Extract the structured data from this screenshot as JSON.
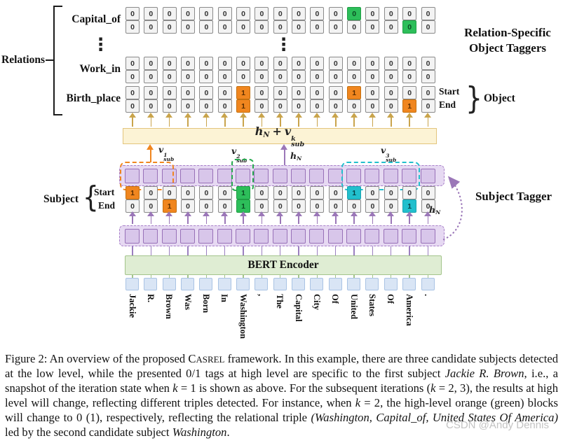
{
  "colors": {
    "orange": "#F0861F",
    "green": "#2DBE5A",
    "cyan": "#22BFCD",
    "gold": "#C9A44C",
    "purple_arrow": "#9B77B8",
    "yellow_bar_bg": "#FCF3D5",
    "yellow_bar_border": "#E3C57C",
    "purple_bg": "#E6D9F2",
    "purple_box": "#D8C6EA",
    "purple_border": "#9871B8",
    "bert_bg": "#DFEDD3",
    "bert_border": "#A3C48B",
    "token_bg": "#D9E5F5",
    "token_border": "#A9C3E4"
  },
  "diagram": {
    "relations_label": "Relations",
    "ellipsis": "⋮",
    "object_taggers_title_line1": "Relation-Specific",
    "object_taggers_title_line2": "Object Taggers",
    "relation_rows": [
      {
        "label": "Capital_of",
        "start": [
          "0",
          "0",
          "0",
          "0",
          "0",
          "0",
          "0",
          "0",
          "0",
          "0",
          "0",
          "0",
          "0:green",
          "0",
          "0",
          "0",
          "0"
        ],
        "end": [
          "0",
          "0",
          "0",
          "0",
          "0",
          "0",
          "0",
          "0",
          "0",
          "0",
          "0",
          "0",
          "0",
          "0",
          "0",
          "0:green",
          "0"
        ]
      },
      {
        "label": "Work_in",
        "start": [
          "0",
          "0",
          "0",
          "0",
          "0",
          "0",
          "0",
          "0",
          "0",
          "0",
          "0",
          "0",
          "0",
          "0",
          "0",
          "0",
          "0"
        ],
        "end": [
          "0",
          "0",
          "0",
          "0",
          "0",
          "0",
          "0",
          "0",
          "0",
          "0",
          "0",
          "0",
          "0",
          "0",
          "0",
          "0",
          "0"
        ]
      },
      {
        "label": "Birth_place",
        "start": [
          "0",
          "0",
          "0",
          "0",
          "0",
          "0",
          "1:orange",
          "0",
          "0",
          "0",
          "0",
          "0",
          "1:orange",
          "0",
          "0",
          "0",
          "0"
        ],
        "end": [
          "0",
          "0",
          "0",
          "0",
          "0",
          "0",
          "1:orange",
          "0",
          "0",
          "0",
          "0",
          "0",
          "0",
          "0",
          "0",
          "1:orange",
          "0"
        ]
      }
    ],
    "object_side": {
      "start": "Start",
      "end": "End",
      "brace": "}",
      "label": "Object"
    },
    "formula_bar": {
      "h": "h",
      "h_sub": "N",
      "plus": "+",
      "v": "v",
      "v_sup": "k",
      "v_sub": "sub"
    },
    "vsub1": {
      "v": "v",
      "sup": "1",
      "sub": "sub"
    },
    "vsub2": {
      "v": "v",
      "sup": "2",
      "sub": "sub"
    },
    "vsub3": {
      "v": "v",
      "sup": "3",
      "sub": "sub"
    },
    "hn_mid": {
      "h": "h",
      "sub": "N"
    },
    "hn_feedback": {
      "h": "h",
      "sub": "N"
    },
    "subject_tagger": {
      "label": "Subject",
      "brace": "{",
      "start_label": "Start",
      "end_label": "End",
      "title": "Subject Tagger",
      "start": [
        "1:orange",
        "0",
        "0",
        "0",
        "0",
        "0",
        "1:green",
        "0",
        "0",
        "0",
        "0",
        "0",
        "1:cyan",
        "0",
        "0",
        "0",
        "0"
      ],
      "end": [
        "0",
        "0",
        "1:orange",
        "0",
        "0",
        "0",
        "1:green",
        "0",
        "0",
        "0",
        "0",
        "0",
        "0",
        "0",
        "0",
        "1:cyan",
        "0"
      ]
    },
    "bert_label": "BERT Encoder",
    "tokens": [
      "Jackie",
      "R.",
      "Brown",
      "Was",
      "Born",
      "In",
      "Washington",
      ",",
      "The",
      "Capital",
      "City",
      "Of",
      "United",
      "States",
      "Of",
      "America",
      "."
    ]
  },
  "caption": {
    "segments": [
      {
        "t": "Figure 2: An overview of the proposed C"
      },
      {
        "t": "ASREL",
        "sc": true
      },
      {
        "t": " framework. In this example, there are three candidate subjects detected at the low level, while the presented 0/1 tags at high level are specific to the first subject "
      },
      {
        "t": "Jackie R. Brown",
        "i": true
      },
      {
        "t": ", i.e., a snapshot of the iteration state when "
      },
      {
        "t": "k",
        "i": true
      },
      {
        "t": " = 1 is shown as above. For the subsequent iterations ("
      },
      {
        "t": "k",
        "i": true
      },
      {
        "t": " = 2, 3), the results at high level will change, reflecting different triples detected. For instance, when "
      },
      {
        "t": "k",
        "i": true
      },
      {
        "t": " = 2, the high-level orange (green) blocks will change to 0 (1), respectively, reflecting the relational triple "
      },
      {
        "t": "(Washington, Capital_of, United States Of America)",
        "i": true
      },
      {
        "t": " led by the second candidate subject "
      },
      {
        "t": "Washington",
        "i": true
      },
      {
        "t": "."
      }
    ]
  },
  "watermark": "CSDN @Andy Dennis"
}
